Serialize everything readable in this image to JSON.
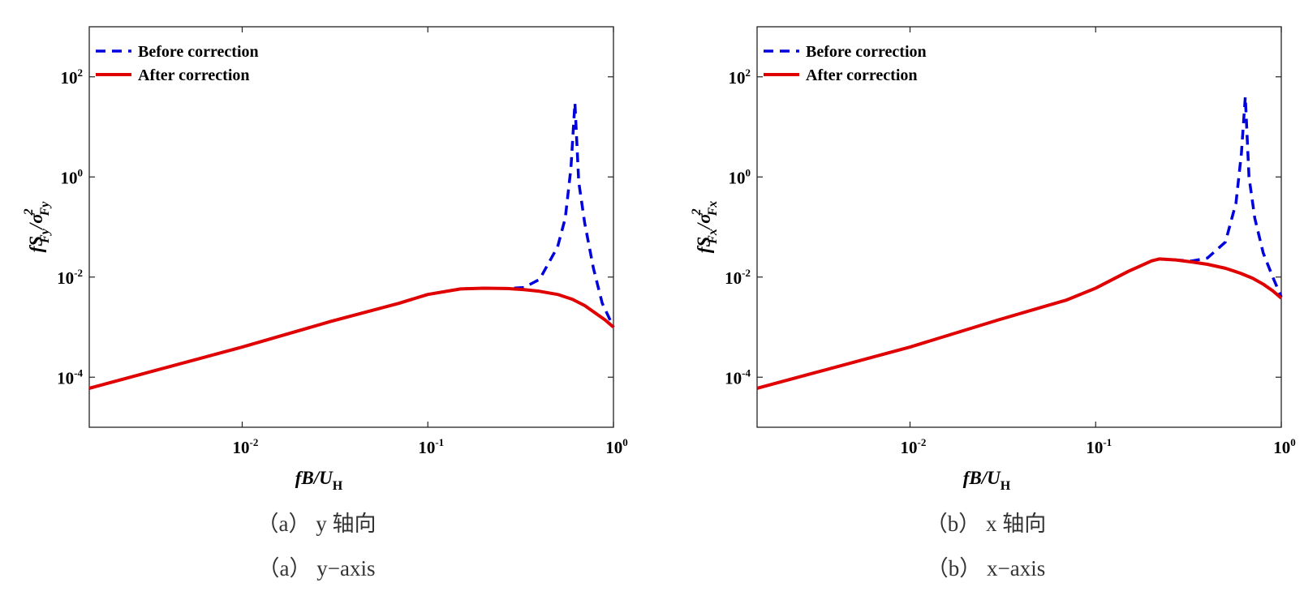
{
  "chart_data": [
    {
      "type": "line",
      "panel": "a",
      "caption_cn": "（a）  y 轴向",
      "caption_en": "（a）  y−axis",
      "xlabel": "fB/U_H",
      "ylabel": "fS_Fy/σ²_Fy",
      "xscale": "log",
      "yscale": "log",
      "xlim": [
        0.0015,
        1
      ],
      "ylim": [
        1e-05,
        1000
      ],
      "x_ticks": [
        "10^-2",
        "10^-1",
        "10^0"
      ],
      "y_ticks": [
        "10^-4",
        "10^-2",
        "10^0",
        "10^2"
      ],
      "legend_position": "top-left",
      "series": [
        {
          "name": "Before correction",
          "style": "dashed",
          "color": "#0000dd",
          "x": [
            0.0015,
            0.003,
            0.01,
            0.03,
            0.07,
            0.1,
            0.15,
            0.2,
            0.27,
            0.33,
            0.4,
            0.5,
            0.55,
            0.59,
            0.62,
            0.65,
            0.7,
            0.78,
            0.87,
            1.0
          ],
          "y": [
            6e-05,
            0.00012,
            0.0004,
            0.0013,
            0.003,
            0.0045,
            0.0058,
            0.006,
            0.0059,
            0.0062,
            0.009,
            0.04,
            0.15,
            1.5,
            30,
            0.8,
            0.12,
            0.015,
            0.003,
            0.001
          ]
        },
        {
          "name": "After correction",
          "style": "solid",
          "color": "#e00000",
          "x": [
            0.0015,
            0.003,
            0.01,
            0.03,
            0.07,
            0.1,
            0.15,
            0.2,
            0.27,
            0.33,
            0.4,
            0.5,
            0.6,
            0.7,
            0.8,
            0.9,
            1.0
          ],
          "y": [
            6e-05,
            0.00012,
            0.0004,
            0.0013,
            0.003,
            0.0045,
            0.0058,
            0.006,
            0.0059,
            0.0056,
            0.0052,
            0.0045,
            0.0036,
            0.0027,
            0.0019,
            0.0014,
            0.001
          ]
        }
      ]
    },
    {
      "type": "line",
      "panel": "b",
      "caption_cn": "（b）  x 轴向",
      "caption_en": "（b）  x−axis",
      "xlabel": "fB/U_H",
      "ylabel": "fS_Fx/σ²_Fx",
      "xscale": "log",
      "yscale": "log",
      "xlim": [
        0.0015,
        1
      ],
      "ylim": [
        1e-05,
        1000
      ],
      "x_ticks": [
        "10^-2",
        "10^-1",
        "10^0"
      ],
      "y_ticks": [
        "10^-4",
        "10^-2",
        "10^0",
        "10^2"
      ],
      "legend_position": "top-left",
      "series": [
        {
          "name": "Before correction",
          "style": "dashed",
          "color": "#0000dd",
          "x": [
            0.0015,
            0.003,
            0.01,
            0.03,
            0.07,
            0.1,
            0.15,
            0.2,
            0.22,
            0.27,
            0.33,
            0.4,
            0.5,
            0.57,
            0.61,
            0.64,
            0.67,
            0.72,
            0.8,
            0.9,
            1.0
          ],
          "y": [
            6e-05,
            0.00012,
            0.0004,
            0.0014,
            0.0035,
            0.006,
            0.013,
            0.021,
            0.023,
            0.022,
            0.021,
            0.024,
            0.05,
            0.3,
            3,
            40,
            1,
            0.15,
            0.03,
            0.01,
            0.004
          ]
        },
        {
          "name": "After correction",
          "style": "solid",
          "color": "#e00000",
          "x": [
            0.0015,
            0.003,
            0.01,
            0.03,
            0.07,
            0.1,
            0.15,
            0.2,
            0.22,
            0.27,
            0.33,
            0.4,
            0.5,
            0.6,
            0.7,
            0.8,
            0.9,
            1.0
          ],
          "y": [
            6e-05,
            0.00012,
            0.0004,
            0.0014,
            0.0035,
            0.006,
            0.013,
            0.021,
            0.023,
            0.022,
            0.02,
            0.018,
            0.015,
            0.012,
            0.0095,
            0.0072,
            0.0053,
            0.0038
          ]
        }
      ]
    }
  ]
}
